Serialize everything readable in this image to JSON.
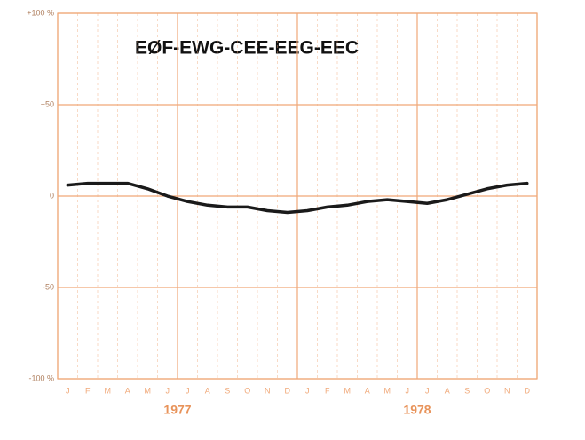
{
  "chart_data": {
    "type": "line",
    "title": "EØF-EWG-CEE-EEG-EEC",
    "categories": [
      "J",
      "F",
      "M",
      "A",
      "M",
      "J",
      "J",
      "A",
      "S",
      "O",
      "N",
      "D",
      "J",
      "F",
      "M",
      "A",
      "M",
      "J",
      "J",
      "A",
      "S",
      "O",
      "N",
      "D"
    ],
    "groups": [
      "1977",
      "1978"
    ],
    "series": [
      {
        "color": "#1a1a1a",
        "values": [
          6,
          7,
          7,
          7,
          4,
          0,
          -3,
          -5,
          -6,
          -6,
          -8,
          -9,
          -8,
          -6,
          -5,
          -3,
          -2,
          -3,
          -4,
          -2,
          1,
          4,
          6,
          7
        ]
      }
    ],
    "ylim": [
      -100,
      100
    ],
    "yticks": [
      {
        "value": 100,
        "label": "+100 %"
      },
      {
        "value": 50,
        "label": "+50"
      },
      0,
      -50,
      {
        "value": -100,
        "label": "-100 %"
      }
    ],
    "grid": true,
    "axis_color": "#f0a878"
  }
}
